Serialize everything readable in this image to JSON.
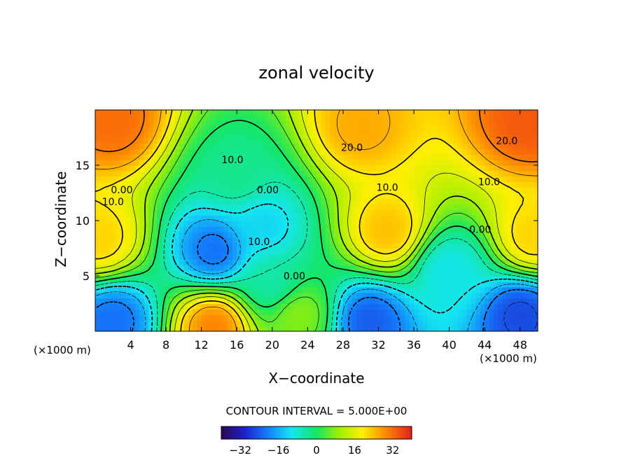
{
  "chart_data": {
    "type": "heatmap",
    "title": "zonal velocity",
    "xlabel": "X−coordinate",
    "ylabel": "Z−coordinate",
    "x_unit_left": "(×1000 m)",
    "x_unit_right": "(×1000 m)",
    "xlim": [
      0,
      50
    ],
    "ylim": [
      0,
      20
    ],
    "x_ticks": [
      4,
      8,
      12,
      16,
      20,
      24,
      28,
      32,
      36,
      40,
      44,
      48
    ],
    "y_ticks": [
      5,
      10,
      15
    ],
    "contour_interval_text": "CONTOUR INTERVAL = 5.000E+00",
    "contour_labels": [
      {
        "text": "20.0",
        "x": 29,
        "z": 16.6
      },
      {
        "text": "20.0",
        "x": 46.5,
        "z": 17.2
      },
      {
        "text": "10.0",
        "x": 15.5,
        "z": 15.5
      },
      {
        "text": "10.0",
        "x": 33,
        "z": 13
      },
      {
        "text": "10.0",
        "x": 44.5,
        "z": 13.5
      },
      {
        "text": "10.0",
        "x": 2,
        "z": 11.7
      },
      {
        "text": "10.0",
        "x": 18.5,
        "z": 8.1
      },
      {
        "text": "0.00",
        "x": 3,
        "z": 12.8
      },
      {
        "text": "0.00",
        "x": 19.5,
        "z": 12.8
      },
      {
        "text": "0.00",
        "x": 22.5,
        "z": 5
      },
      {
        "text": "0.00",
        "x": 43.5,
        "z": 9.2
      }
    ],
    "value_range": [
      -40,
      40
    ],
    "colorbar": {
      "ticks": [
        -32,
        -16,
        0,
        16,
        32
      ],
      "range": [
        -40,
        40
      ]
    },
    "field_features": [
      {
        "x": 2,
        "z": 19,
        "value": 32
      },
      {
        "x": 30,
        "z": 18.5,
        "value": 26
      },
      {
        "x": 49,
        "z": 19,
        "value": 34
      },
      {
        "x": 0.5,
        "z": 8.3,
        "value": 22
      },
      {
        "x": 33,
        "z": 9,
        "value": 24
      },
      {
        "x": 49.5,
        "z": 8.5,
        "value": 22
      },
      {
        "x": 13.5,
        "z": 7.3,
        "value": -22
      },
      {
        "x": 19,
        "z": 9.5,
        "value": -12
      },
      {
        "x": 2,
        "z": 1,
        "value": -22
      },
      {
        "x": 31,
        "z": 1,
        "value": -24
      },
      {
        "x": 48,
        "z": 1.5,
        "value": -26
      },
      {
        "x": 13.5,
        "z": 0.5,
        "value": 30
      },
      {
        "x": 20,
        "z": 4.3,
        "value": -5
      },
      {
        "x": 40,
        "z": 5.5,
        "value": -10
      },
      {
        "x": 16,
        "z": 14,
        "value": -3
      },
      {
        "x": 23,
        "z": 1.5,
        "value": 8
      }
    ]
  }
}
